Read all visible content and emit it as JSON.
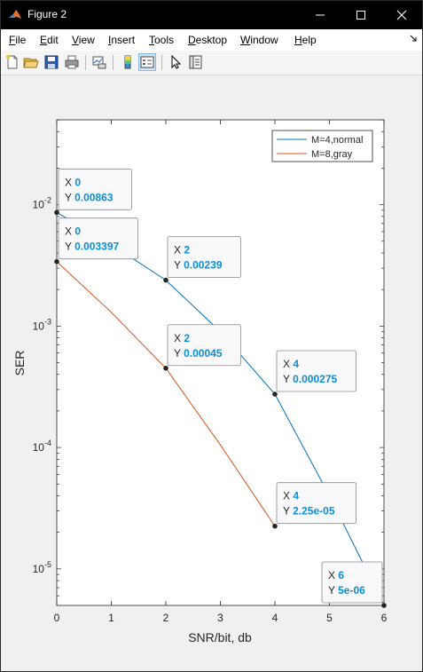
{
  "window": {
    "title": "Figure 2",
    "minimize_label": "minimize",
    "maximize_label": "maximize",
    "close_label": "close"
  },
  "menu": {
    "items": [
      {
        "id": "file",
        "label": "File",
        "mnemonic": "F",
        "rest": "ile"
      },
      {
        "id": "edit",
        "label": "Edit",
        "mnemonic": "E",
        "rest": "dit"
      },
      {
        "id": "view",
        "label": "View",
        "mnemonic": "V",
        "rest": "iew"
      },
      {
        "id": "insert",
        "label": "Insert",
        "mnemonic": "I",
        "rest": "nsert"
      },
      {
        "id": "tools",
        "label": "Tools",
        "mnemonic": "T",
        "rest": "ools"
      },
      {
        "id": "desktop",
        "label": "Desktop",
        "mnemonic": "D",
        "rest": "esktop"
      },
      {
        "id": "window",
        "label": "Window",
        "mnemonic": "W",
        "rest": "indow"
      },
      {
        "id": "help",
        "label": "Help",
        "mnemonic": "H",
        "rest": "elp"
      }
    ]
  },
  "toolbar": {
    "icons": [
      "new-figure-icon",
      "open-file-icon",
      "save-icon",
      "print-icon",
      "link-plot-icon",
      "colorbar-icon",
      "legend-icon",
      "pointer-icon",
      "property-inspector-icon"
    ]
  },
  "colors": {
    "series1": "#0072bd",
    "series2": "#d95319",
    "datatip_value": "#0a8fd6"
  },
  "chart_data": {
    "type": "line",
    "xlabel": "SNR/bit, db",
    "ylabel": "SER",
    "xlim": [
      0,
      6
    ],
    "ylim": [
      5e-06,
      0.05
    ],
    "yscale": "log",
    "xticks": [
      0,
      1,
      2,
      3,
      4,
      5,
      6
    ],
    "xtick_labels": [
      "0",
      "1",
      "2",
      "3",
      "4",
      "5",
      "6"
    ],
    "yticks": [
      1e-05,
      0.0001,
      0.001,
      0.01
    ],
    "ytick_labels": [
      {
        "base": "10",
        "exp": "-5"
      },
      {
        "base": "10",
        "exp": "-4"
      },
      {
        "base": "10",
        "exp": "-3"
      },
      {
        "base": "10",
        "exp": "-2"
      }
    ],
    "legend_position": "top-right",
    "grid": false,
    "series": [
      {
        "name": "M=4,normal",
        "x": [
          0,
          1,
          2,
          3,
          4,
          5,
          6
        ],
        "y": [
          0.00863,
          0.0047,
          0.00239,
          0.0009,
          0.000275,
          4e-05,
          5e-06
        ]
      },
      {
        "name": "M=8,gray",
        "x": [
          0,
          1,
          2,
          3,
          4
        ],
        "y": [
          0.003397,
          0.0013,
          0.00045,
          0.000105,
          2.25e-05
        ]
      }
    ],
    "datatips": [
      {
        "series": 0,
        "x": "0",
        "y": "0.00863",
        "xv": 0,
        "yv": 0.00863,
        "place": "above"
      },
      {
        "series": 1,
        "x": "0",
        "y": "0.003397",
        "xv": 0,
        "yv": 0.003397,
        "place": "above"
      },
      {
        "series": 0,
        "x": "2",
        "y": "0.00239",
        "xv": 2,
        "yv": 0.00239,
        "place": "above"
      },
      {
        "series": 1,
        "x": "2",
        "y": "0.00045",
        "xv": 2,
        "yv": 0.00045,
        "place": "above"
      },
      {
        "series": 0,
        "x": "4",
        "y": "0.000275",
        "xv": 4,
        "yv": 0.000275,
        "place": "above"
      },
      {
        "series": 1,
        "x": "4",
        "y": "2.25e-05",
        "xv": 4,
        "yv": 2.25e-05,
        "place": "above"
      },
      {
        "series": 0,
        "x": "6",
        "y": "5e-06",
        "xv": 6,
        "yv": 5e-06,
        "place": "left"
      }
    ]
  }
}
